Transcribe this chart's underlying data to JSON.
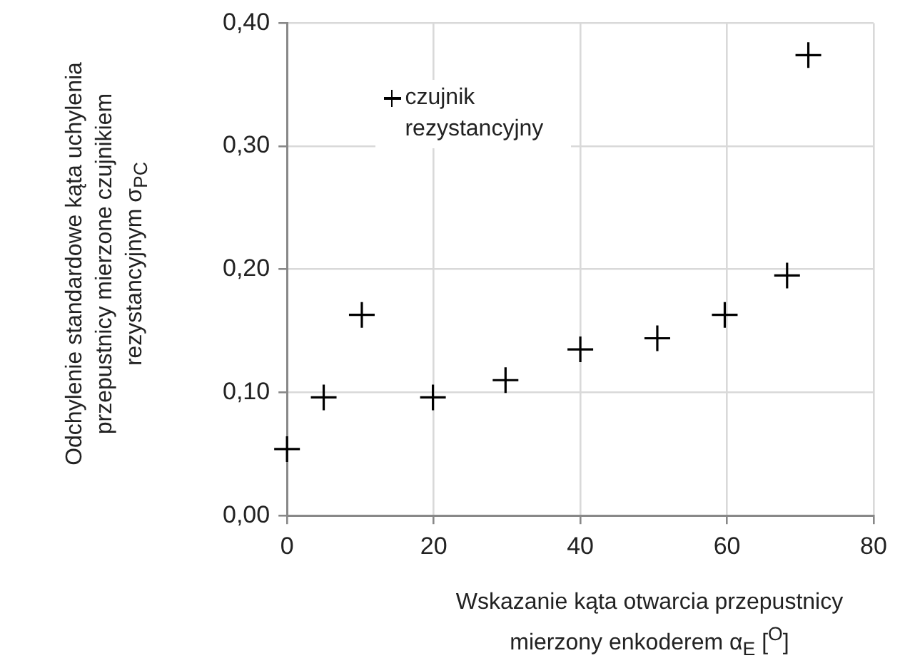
{
  "chart_data": {
    "type": "scatter",
    "xlabel": "Wskazanie kąta otwarcia przepustnicy mierzony enkoderem α$_{E}$ [$^{O}$]",
    "ylabel": "Odchylenie standardowe kąta uchylenia przepustnicy mierzone czujnikiem rezystancyjnym σ$_{PC}$",
    "series": [
      {
        "name": "czujnik rezystancyjny",
        "color": "#000000",
        "x": [
          0,
          5,
          10.2,
          19.9,
          29.8,
          40,
          50.5,
          59.7,
          68.2,
          71.1
        ],
        "values": [
          0.054,
          0.096,
          0.163,
          0.096,
          0.11,
          0.135,
          0.144,
          0.163,
          0.195,
          0.374
        ]
      }
    ],
    "xlim": [
      0,
      80
    ],
    "xticks": [
      0,
      20,
      40,
      60,
      80
    ],
    "ylim": [
      0,
      0.4
    ],
    "yticks": [
      {
        "value": 0,
        "label": "0,00"
      },
      {
        "value": 0.1,
        "label": "0,10"
      },
      {
        "value": 0.2,
        "label": "0,20"
      },
      {
        "value": 0.3,
        "label": "0,30"
      },
      {
        "value": 0.4,
        "label": "0,40"
      }
    ],
    "grid": true,
    "legend": "top left",
    "marker": "cross"
  }
}
